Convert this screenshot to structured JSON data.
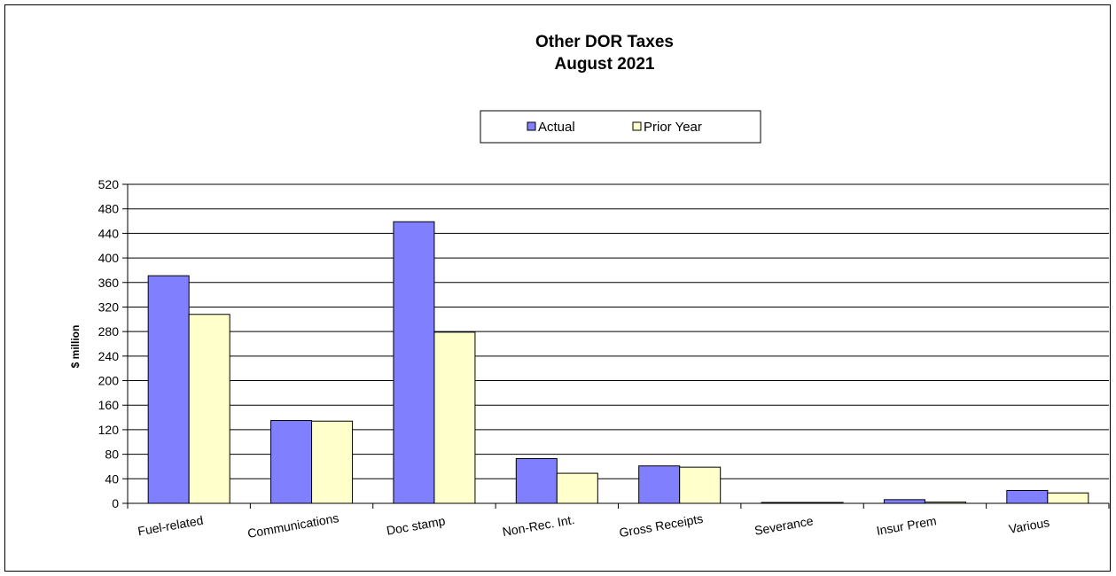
{
  "chart_data": {
    "type": "bar",
    "title": "Other DOR Taxes",
    "subtitle": "August 2021",
    "xlabel": "",
    "ylabel": "$ million",
    "ylim": [
      0,
      520
    ],
    "yticks": [
      0,
      40,
      80,
      120,
      160,
      200,
      240,
      280,
      320,
      360,
      400,
      440,
      480,
      520
    ],
    "grid": true,
    "legend_position": "top-center",
    "categories": [
      "Fuel-related",
      "Communications",
      "Doc stamp",
      "Non-Rec. Int.",
      "Gross Receipts",
      "Severance",
      "Insur Prem",
      "Various"
    ],
    "series": [
      {
        "name": "Actual",
        "color": "#8080ff",
        "values": [
          371,
          135,
          459,
          73,
          61,
          1,
          6,
          21
        ]
      },
      {
        "name": "Prior Year",
        "color": "#ffffcc",
        "values": [
          308,
          134,
          279,
          49,
          59,
          1,
          2,
          17
        ]
      }
    ]
  }
}
